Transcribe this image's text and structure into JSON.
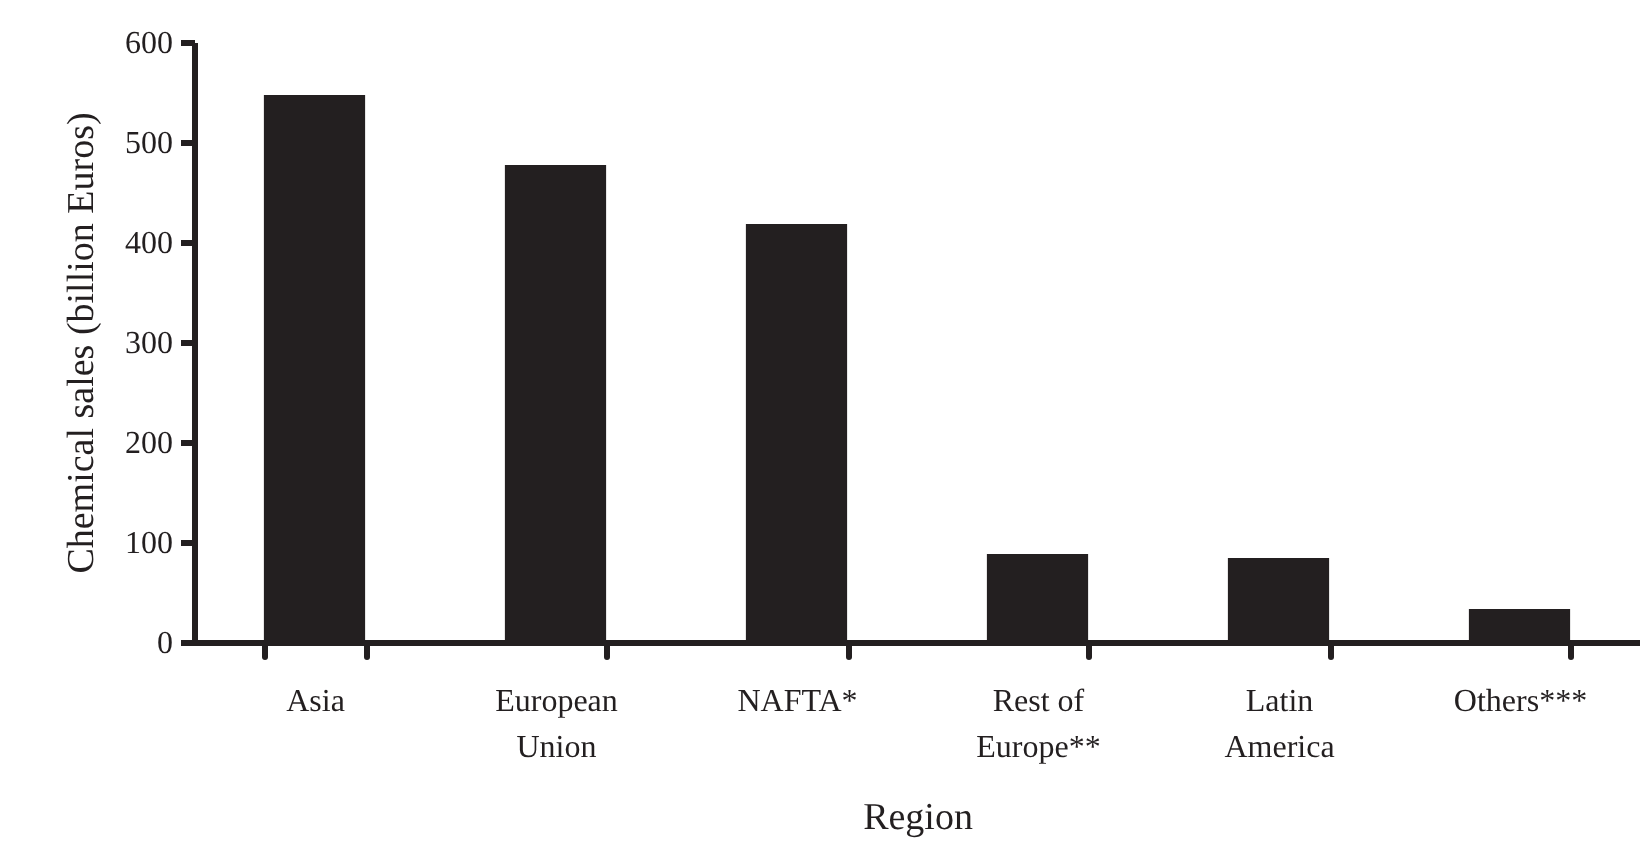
{
  "chart_data": {
    "type": "bar",
    "xlabel": "Region",
    "ylabel": "Chemical sales (billion Euros)",
    "categories": [
      "Asia",
      "European\nUnion",
      "NAFTA*",
      "Rest of\nEurope**",
      "Latin\nAmerica",
      "Others***"
    ],
    "values": [
      547,
      477,
      418,
      88,
      84,
      33
    ],
    "color": "#231f20",
    "ylim": [
      0,
      600
    ],
    "yticks": [
      0,
      100,
      200,
      300,
      400,
      500,
      600
    ]
  }
}
